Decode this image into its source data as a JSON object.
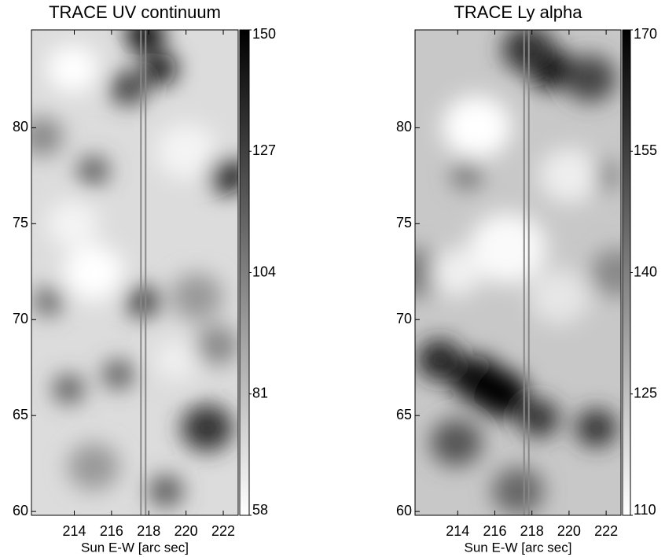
{
  "chart_data": [
    {
      "type": "image",
      "title": "TRACE UV continuum",
      "xlabel": "Sun E-W [arc sec]",
      "xlim": [
        211.7,
        222.8
      ],
      "xticks": [
        214,
        216,
        218,
        220,
        222
      ],
      "ylim": [
        59.8,
        85.1
      ],
      "yticks": [
        60,
        65,
        70,
        75,
        80
      ],
      "colorbar": {
        "lim": [
          58,
          150
        ],
        "ticks": [
          58,
          81,
          104,
          127,
          150
        ]
      }
    },
    {
      "type": "image",
      "title": "TRACE Ly alpha",
      "xlabel": "Sun E-W [arc sec]",
      "xlim": [
        211.7,
        222.8
      ],
      "xticks": [
        214,
        216,
        218,
        220,
        222
      ],
      "ylim": [
        59.8,
        85.1
      ],
      "yticks": [
        60,
        65,
        70,
        75,
        80
      ],
      "colorbar": {
        "lim": [
          110,
          170
        ],
        "ticks": [
          110,
          125,
          140,
          155,
          170
        ]
      }
    }
  ]
}
